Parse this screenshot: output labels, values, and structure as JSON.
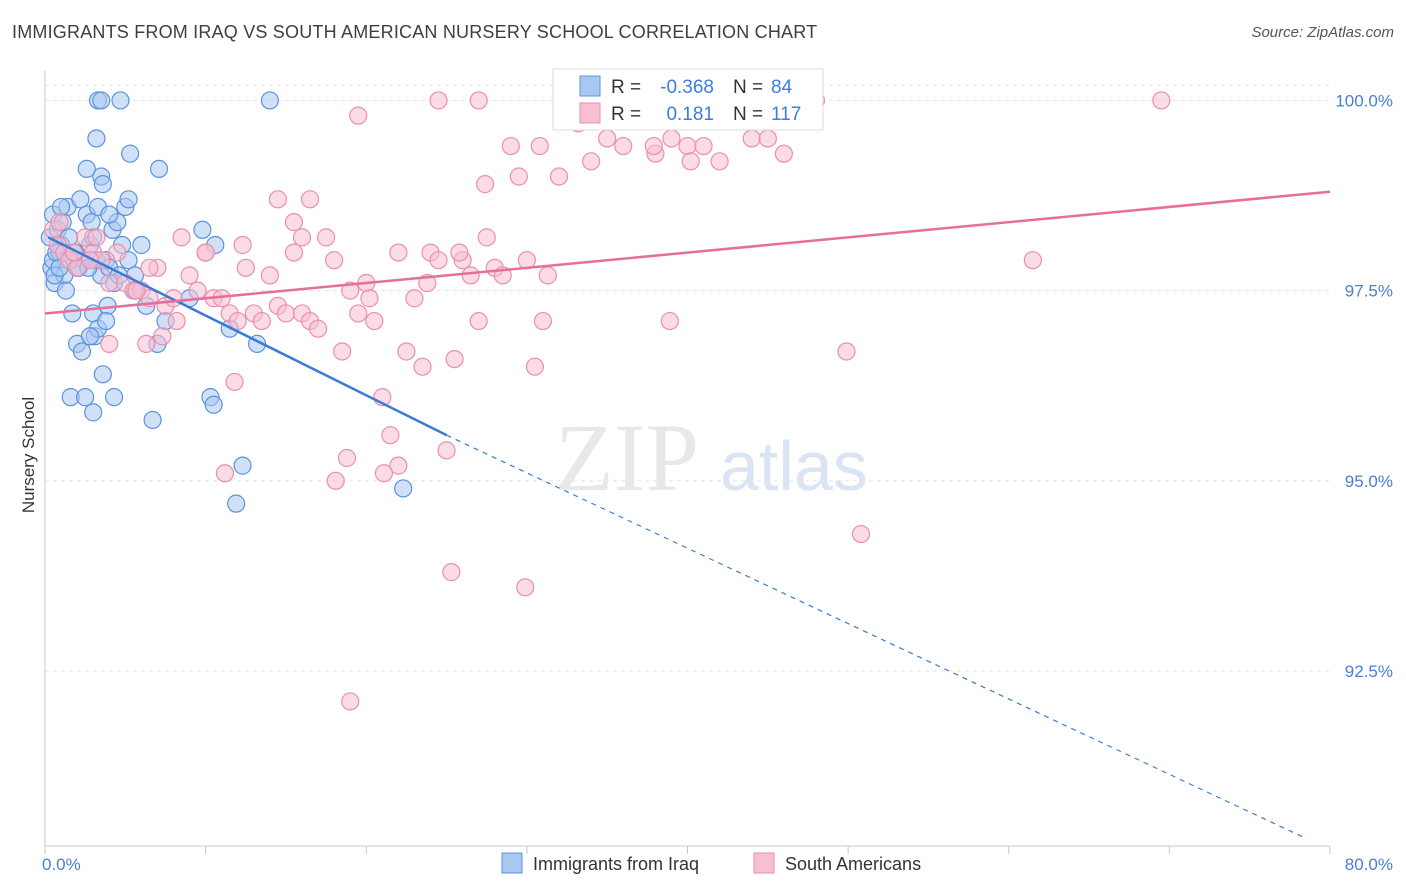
{
  "header": {
    "title": "IMMIGRANTS FROM IRAQ VS SOUTH AMERICAN NURSERY SCHOOL CORRELATION CHART",
    "source": "Source: ZipAtlas.com"
  },
  "watermark": {
    "zip": "ZIP",
    "atlas": "atlas"
  },
  "colors": {
    "iraq_fill": "#a9c8f0",
    "iraq_stroke": "#5a93de",
    "iraq_line": "#3a7bd5",
    "sa_fill": "#f7c0d2",
    "sa_stroke": "#ea8fae",
    "sa_line": "#e56f9a",
    "grid": "#e3e3e3",
    "tick_label": "#4a7fd4"
  },
  "legend": {
    "rows": [
      {
        "r_label": "R =",
        "r_value": "-0.368",
        "n_label": "N =",
        "n_value": "84"
      },
      {
        "r_label": "R =",
        "r_value": "0.181",
        "n_label": "N =",
        "n_value": "117"
      }
    ]
  },
  "chart_data": {
    "type": "scatter",
    "title": "IMMIGRANTS FROM IRAQ VS SOUTH AMERICAN NURSERY SCHOOL CORRELATION CHART",
    "xlabel": "",
    "ylabel": "Nursery School",
    "xlim": [
      0,
      80
    ],
    "ylim": [
      90.2,
      100.4
    ],
    "x_tick_labels": [
      "0.0%",
      "80.0%"
    ],
    "y_ticks": [
      100.0,
      97.5,
      95.0,
      92.5
    ],
    "y_tick_labels": [
      "100.0%",
      "97.5%",
      "95.0%",
      "92.5%"
    ],
    "grid": true,
    "legend_position": "top-center",
    "series": [
      {
        "name": "Immigrants from Iraq",
        "r": -0.368,
        "n": 84,
        "trend": {
          "x0": 0.2,
          "y0": 98.2,
          "x1": 25,
          "y1": 95.6,
          "dash_x1": 78.5,
          "dash_y1": 90.3
        },
        "points": [
          [
            0.5,
            98.5
          ],
          [
            0.3,
            98.2
          ],
          [
            0.4,
            97.8
          ],
          [
            0.6,
            97.6
          ],
          [
            0.5,
            97.9
          ],
          [
            0.8,
            98.3
          ],
          [
            1.0,
            98.1
          ],
          [
            1.2,
            97.7
          ],
          [
            0.9,
            98.0
          ],
          [
            1.4,
            98.6
          ],
          [
            1.5,
            98.2
          ],
          [
            1.6,
            97.9
          ],
          [
            1.1,
            98.4
          ],
          [
            0.7,
            98.0
          ],
          [
            1.8,
            98.0
          ],
          [
            2.0,
            97.8
          ],
          [
            2.2,
            98.7
          ],
          [
            2.4,
            97.9
          ],
          [
            1.3,
            97.5
          ],
          [
            2.6,
            98.5
          ],
          [
            2.8,
            98.1
          ],
          [
            3.0,
            98.2
          ],
          [
            3.2,
            97.9
          ],
          [
            3.5,
            97.7
          ],
          [
            3.8,
            97.9
          ],
          [
            4.0,
            97.8
          ],
          [
            4.2,
            98.3
          ],
          [
            4.5,
            98.4
          ],
          [
            4.8,
            98.1
          ],
          [
            5.0,
            98.6
          ],
          [
            5.2,
            97.9
          ],
          [
            2.9,
            98.4
          ],
          [
            3.3,
            98.6
          ],
          [
            2.1,
            97.8
          ],
          [
            1.7,
            97.2
          ],
          [
            3.0,
            97.2
          ],
          [
            3.1,
            96.9
          ],
          [
            3.3,
            97.0
          ],
          [
            3.9,
            97.3
          ],
          [
            3.8,
            97.1
          ],
          [
            2.0,
            96.8
          ],
          [
            2.3,
            96.7
          ],
          [
            3.6,
            96.4
          ],
          [
            1.6,
            96.1
          ],
          [
            2.5,
            96.1
          ],
          [
            4.3,
            96.1
          ],
          [
            3.0,
            95.9
          ],
          [
            6.7,
            95.8
          ],
          [
            5.6,
            97.7
          ],
          [
            7.0,
            96.8
          ],
          [
            9.8,
            98.3
          ],
          [
            10.6,
            98.1
          ],
          [
            9.0,
            97.4
          ],
          [
            11.5,
            97.0
          ],
          [
            13.2,
            96.8
          ],
          [
            10.3,
            96.1
          ],
          [
            10.5,
            96.0
          ],
          [
            12.3,
            95.2
          ],
          [
            11.9,
            94.7
          ],
          [
            22.3,
            94.9
          ],
          [
            5.3,
            99.3
          ],
          [
            7.1,
            99.1
          ],
          [
            3.5,
            99.0
          ],
          [
            3.6,
            98.9
          ],
          [
            2.6,
            99.1
          ],
          [
            3.2,
            99.5
          ],
          [
            3.3,
            100.0
          ],
          [
            3.5,
            100.0
          ],
          [
            4.7,
            100.0
          ],
          [
            14.0,
            100.0
          ],
          [
            5.2,
            98.7
          ],
          [
            4.0,
            98.5
          ],
          [
            2.7,
            97.8
          ],
          [
            0.6,
            97.7
          ],
          [
            1.0,
            98.6
          ],
          [
            4.3,
            97.6
          ],
          [
            5.6,
            97.5
          ],
          [
            6.3,
            97.3
          ],
          [
            2.8,
            96.9
          ],
          [
            4.6,
            97.7
          ],
          [
            6.0,
            98.1
          ],
          [
            1.9,
            98.0
          ],
          [
            0.9,
            97.8
          ],
          [
            7.5,
            97.1
          ]
        ]
      },
      {
        "name": "South Americans",
        "r": 0.181,
        "n": 117,
        "trend": {
          "x0": 0,
          "y0": 97.2,
          "x1": 80,
          "y1": 98.8
        },
        "points": [
          [
            0.5,
            98.3
          ],
          [
            0.8,
            98.1
          ],
          [
            1.2,
            98.0
          ],
          [
            1.5,
            97.9
          ],
          [
            2.0,
            97.8
          ],
          [
            2.5,
            98.2
          ],
          [
            3.0,
            98.0
          ],
          [
            3.5,
            97.9
          ],
          [
            4.0,
            97.6
          ],
          [
            4.5,
            98.0
          ],
          [
            5.0,
            97.6
          ],
          [
            5.5,
            97.5
          ],
          [
            6.0,
            97.5
          ],
          [
            6.5,
            97.4
          ],
          [
            7.0,
            97.8
          ],
          [
            7.5,
            97.3
          ],
          [
            8.0,
            97.4
          ],
          [
            8.5,
            98.2
          ],
          [
            9.0,
            97.7
          ],
          [
            9.5,
            97.5
          ],
          [
            10.0,
            98.0
          ],
          [
            10.5,
            97.4
          ],
          [
            11.0,
            97.4
          ],
          [
            11.5,
            97.2
          ],
          [
            12.0,
            97.1
          ],
          [
            12.5,
            97.8
          ],
          [
            13.0,
            97.2
          ],
          [
            13.5,
            97.1
          ],
          [
            14.0,
            97.7
          ],
          [
            14.5,
            97.3
          ],
          [
            15.0,
            97.2
          ],
          [
            15.5,
            98.0
          ],
          [
            16.0,
            97.2
          ],
          [
            16.5,
            97.1
          ],
          [
            17.0,
            97.0
          ],
          [
            17.5,
            98.2
          ],
          [
            18.0,
            97.9
          ],
          [
            18.5,
            96.7
          ],
          [
            19.0,
            97.5
          ],
          [
            19.5,
            97.2
          ],
          [
            20.0,
            97.6
          ],
          [
            20.5,
            97.1
          ],
          [
            21.0,
            96.1
          ],
          [
            21.5,
            95.6
          ],
          [
            22.0,
            95.2
          ],
          [
            22.5,
            96.7
          ],
          [
            23.0,
            97.4
          ],
          [
            23.5,
            96.5
          ],
          [
            24.0,
            98.0
          ],
          [
            24.5,
            97.9
          ],
          [
            25.0,
            95.4
          ],
          [
            25.5,
            96.6
          ],
          [
            26.0,
            97.9
          ],
          [
            26.5,
            97.7
          ],
          [
            27.0,
            97.1
          ],
          [
            27.5,
            98.2
          ],
          [
            28.0,
            97.8
          ],
          [
            28.5,
            97.7
          ],
          [
            29.0,
            99.4
          ],
          [
            29.5,
            99.0
          ],
          [
            30.0,
            97.9
          ],
          [
            30.5,
            96.5
          ],
          [
            31.0,
            97.1
          ],
          [
            32.0,
            99.0
          ],
          [
            33.0,
            99.8
          ],
          [
            34.0,
            99.2
          ],
          [
            35.0,
            99.5
          ],
          [
            36.0,
            99.4
          ],
          [
            37.0,
            100.0
          ],
          [
            38.0,
            99.3
          ],
          [
            39.0,
            99.5
          ],
          [
            40.0,
            99.4
          ],
          [
            41.0,
            99.4
          ],
          [
            42.0,
            99.2
          ],
          [
            43.0,
            99.8
          ],
          [
            44.0,
            99.5
          ],
          [
            45.0,
            99.5
          ],
          [
            46.0,
            99.3
          ],
          [
            27.0,
            100.0
          ],
          [
            24.5,
            100.0
          ],
          [
            19.5,
            99.8
          ],
          [
            15.5,
            98.4
          ],
          [
            14.5,
            98.7
          ],
          [
            16.5,
            98.7
          ],
          [
            10.0,
            98.0
          ],
          [
            5.7,
            97.5
          ],
          [
            4.0,
            96.8
          ],
          [
            6.3,
            96.8
          ],
          [
            7.3,
            96.9
          ],
          [
            11.8,
            96.3
          ],
          [
            11.2,
            95.1
          ],
          [
            18.8,
            95.3
          ],
          [
            18.1,
            95.0
          ],
          [
            21.1,
            95.1
          ],
          [
            25.3,
            93.8
          ],
          [
            29.9,
            93.6
          ],
          [
            19.0,
            92.1
          ],
          [
            8.2,
            97.1
          ],
          [
            6.5,
            97.8
          ],
          [
            3.2,
            98.2
          ],
          [
            2.8,
            97.9
          ],
          [
            1.8,
            98.0
          ],
          [
            0.9,
            98.4
          ],
          [
            12.3,
            98.1
          ],
          [
            16.0,
            98.2
          ],
          [
            20.2,
            97.4
          ],
          [
            22.0,
            98.0
          ],
          [
            23.8,
            97.6
          ],
          [
            25.8,
            98.0
          ],
          [
            27.4,
            98.9
          ],
          [
            31.3,
            97.7
          ],
          [
            30.8,
            99.4
          ],
          [
            33.2,
            99.7
          ],
          [
            37.9,
            99.4
          ],
          [
            40.2,
            99.2
          ],
          [
            38.9,
            97.1
          ],
          [
            49.9,
            96.7
          ],
          [
            50.8,
            94.3
          ],
          [
            61.5,
            97.9
          ],
          [
            69.5,
            100.0
          ],
          [
            48.0,
            100.0
          ]
        ]
      }
    ]
  },
  "bottom_legend": {
    "iraq": "Immigrants from Iraq",
    "sa": "South Americans"
  }
}
